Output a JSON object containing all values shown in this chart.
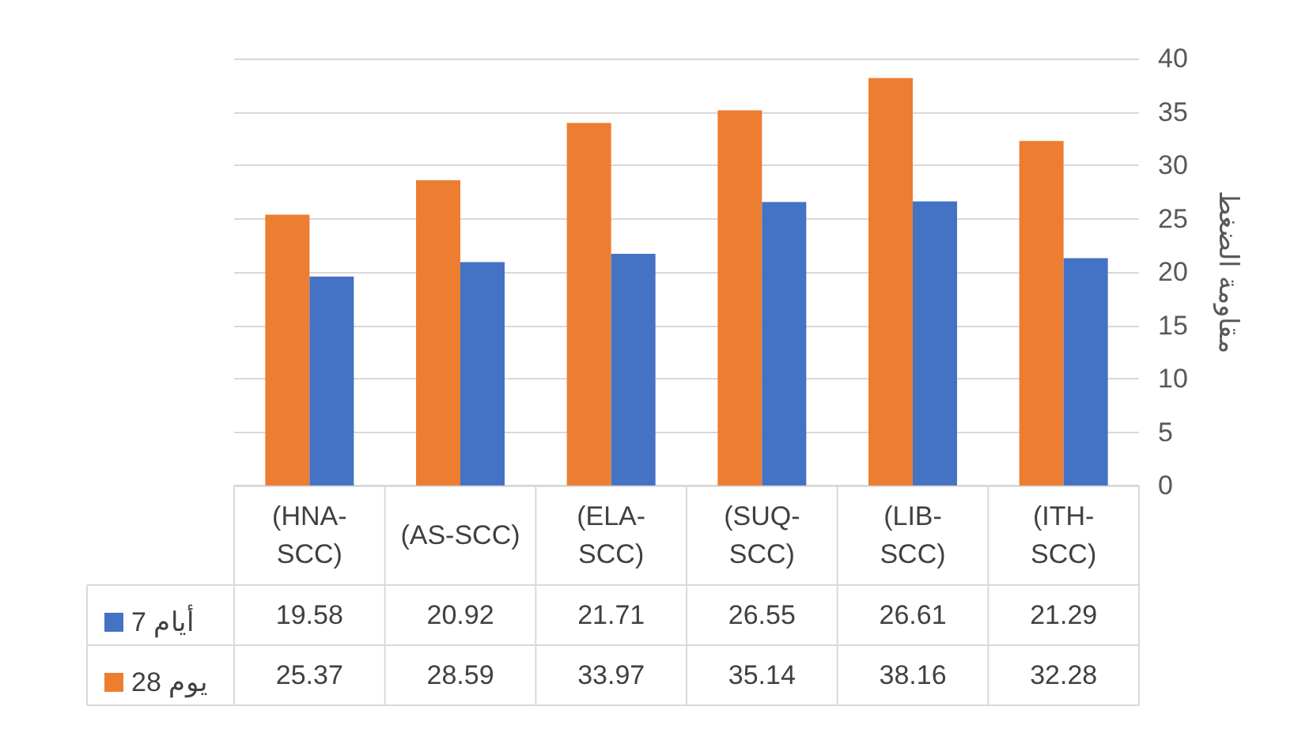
{
  "chart_data": {
    "type": "bar",
    "ylabel": "مقاومة الضغط",
    "categories": [
      "(HNA-SCC)",
      "(AS-SCC)",
      "(ELA-SCC)",
      "(SUQ-SCC)",
      "(LIB-SCC)",
      "(ITH-SCC)"
    ],
    "series": [
      {
        "name": "7 أيام",
        "color": "#4472c4",
        "values": [
          19.58,
          20.92,
          21.71,
          26.55,
          26.61,
          21.29
        ]
      },
      {
        "name": "28 يوم",
        "color": "#ed7d31",
        "values": [
          25.37,
          28.59,
          33.97,
          35.14,
          38.16,
          32.28
        ]
      }
    ],
    "ylim": [
      0,
      40
    ],
    "yticks": [
      0,
      5,
      10,
      15,
      20,
      25,
      30,
      35,
      40
    ],
    "grid": "y",
    "legend": "bottom left",
    "data_labels": true
  }
}
